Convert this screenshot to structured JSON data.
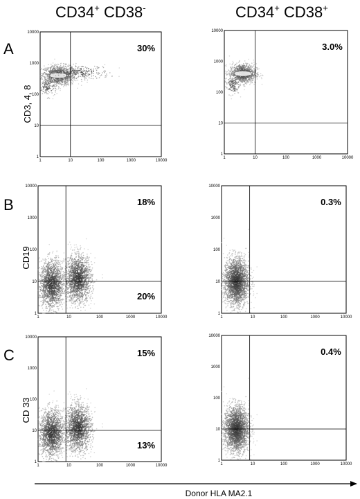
{
  "figure": {
    "column_titles": [
      {
        "main": "CD34",
        "sup1": "+",
        "mid": " CD38",
        "sup2": "-"
      },
      {
        "main": "CD34",
        "sup1": "+",
        "mid": " CD38",
        "sup2": "+"
      }
    ],
    "row_letters": [
      "A",
      "B",
      "C"
    ],
    "row_ylabels": [
      "CD3, 4, 8",
      "CD19",
      "CD 33"
    ],
    "x_axis_label": "Donor HLA MA2.1",
    "tick_labels": [
      "1",
      "10",
      "100",
      "1000",
      "10000"
    ]
  },
  "chart_data": [
    {
      "type": "scatter",
      "row": "A",
      "column": "CD34+ CD38-",
      "ylabel": "CD3, 4, 8",
      "xlim": [
        1,
        10000
      ],
      "ylim": [
        1,
        10000
      ],
      "log_scale": true,
      "gate_x": 10,
      "gate_y": 10,
      "annotations": [
        {
          "text": "30%",
          "quadrant": "upper-right"
        }
      ],
      "populations": [
        {
          "x": 4,
          "y": 400,
          "sx": 0.28,
          "sy": 0.16,
          "n": 900
        },
        {
          "x": 20,
          "y": 500,
          "sx": 0.5,
          "sy": 0.12,
          "n": 260
        },
        {
          "x": 1.8,
          "y": 170,
          "sx": 0.15,
          "sy": 0.15,
          "n": 120
        }
      ]
    },
    {
      "type": "scatter",
      "row": "A",
      "column": "CD34+ CD38+",
      "ylabel": "CD3, 4, 8",
      "xlim": [
        1,
        10000
      ],
      "ylim": [
        1,
        10000
      ],
      "log_scale": true,
      "gate_x": 10,
      "gate_y": 10,
      "annotations": [
        {
          "text": "3.0%",
          "quadrant": "upper-right"
        }
      ],
      "populations": [
        {
          "x": 4,
          "y": 400,
          "sx": 0.22,
          "sy": 0.16,
          "n": 900
        },
        {
          "x": 1.8,
          "y": 170,
          "sx": 0.12,
          "sy": 0.15,
          "n": 120
        }
      ]
    },
    {
      "type": "scatter",
      "row": "B",
      "column": "CD34+ CD38-",
      "ylabel": "CD19",
      "xlim": [
        1,
        10000
      ],
      "ylim": [
        1,
        10000
      ],
      "log_scale": true,
      "gate_x": 8,
      "gate_y": 10,
      "annotations": [
        {
          "text": "18%",
          "quadrant": "upper-right"
        },
        {
          "text": "20%",
          "quadrant": "lower-right"
        }
      ],
      "populations": [
        {
          "x": 2.8,
          "y": 8,
          "sx": 0.2,
          "sy": 0.38,
          "n": 1500
        },
        {
          "x": 20,
          "y": 12,
          "sx": 0.22,
          "sy": 0.38,
          "n": 1500
        }
      ]
    },
    {
      "type": "scatter",
      "row": "B",
      "column": "CD34+ CD38+",
      "ylabel": "CD19",
      "xlim": [
        1,
        10000
      ],
      "ylim": [
        1,
        10000
      ],
      "log_scale": true,
      "gate_x": 8,
      "gate_y": 10,
      "annotations": [
        {
          "text": "0.3%",
          "quadrant": "upper-right"
        }
      ],
      "populations": [
        {
          "x": 3,
          "y": 10,
          "sx": 0.2,
          "sy": 0.38,
          "n": 2200
        }
      ]
    },
    {
      "type": "scatter",
      "row": "C",
      "column": "CD34+ CD38-",
      "ylabel": "CD 33",
      "xlim": [
        1,
        10000
      ],
      "ylim": [
        1,
        10000
      ],
      "log_scale": true,
      "gate_x": 8,
      "gate_y": 10,
      "annotations": [
        {
          "text": "15%",
          "quadrant": "upper-right"
        },
        {
          "text": "13%",
          "quadrant": "lower-right"
        }
      ],
      "populations": [
        {
          "x": 2.8,
          "y": 8,
          "sx": 0.2,
          "sy": 0.38,
          "n": 1500
        },
        {
          "x": 20,
          "y": 12,
          "sx": 0.22,
          "sy": 0.38,
          "n": 1500
        }
      ]
    },
    {
      "type": "scatter",
      "row": "C",
      "column": "CD34+ CD38+",
      "ylabel": "CD 33",
      "xlim": [
        1,
        10000
      ],
      "ylim": [
        1,
        10000
      ],
      "log_scale": true,
      "gate_x": 8,
      "gate_y": 10,
      "annotations": [
        {
          "text": "0.4%",
          "quadrant": "upper-right"
        }
      ],
      "populations": [
        {
          "x": 3,
          "y": 10,
          "sx": 0.2,
          "sy": 0.38,
          "n": 2200
        }
      ]
    }
  ]
}
